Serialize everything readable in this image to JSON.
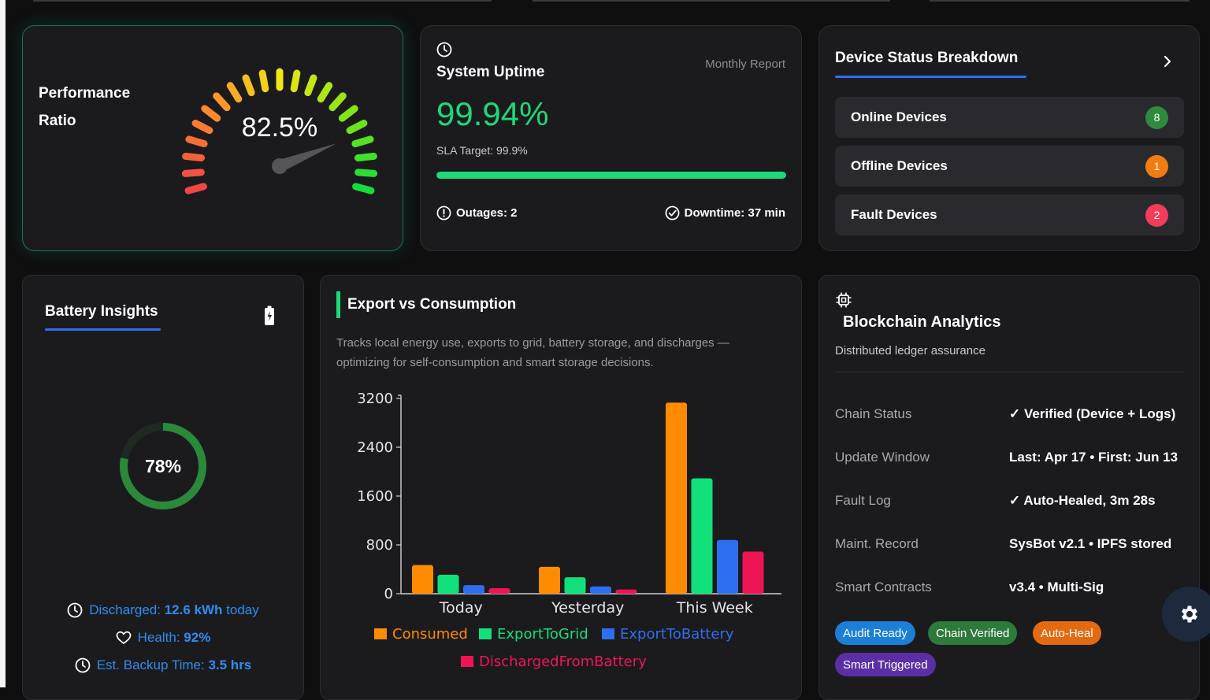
{
  "performance": {
    "title_line1": "Performance",
    "title_line2": "Ratio",
    "value_text": "82.5%",
    "value": 82.5
  },
  "uptime": {
    "title": "System Uptime",
    "report": "Monthly Report",
    "value": "99.94%",
    "sla": "SLA Target: 99.9%",
    "progress": 0.9994,
    "outages": "Outages: 2",
    "downtime": "Downtime: 37 min"
  },
  "devices": {
    "title": "Device Status Breakdown",
    "rows": [
      {
        "label": "Online Devices",
        "count": "8",
        "color": "#2e8b3e"
      },
      {
        "label": "Offline Devices",
        "count": "1",
        "color": "#f07c12"
      },
      {
        "label": "Fault Devices",
        "count": "2",
        "color": "#f23d5a"
      }
    ]
  },
  "battery": {
    "title": "Battery Insights",
    "percent_text": "78%",
    "percent": 78,
    "discharged_label": "Discharged:",
    "discharged_value": "12.6 kWh",
    "discharged_suffix": "today",
    "health_label": "Health:",
    "health_value": "92%",
    "backup_label": "Est. Backup Time:",
    "backup_value": "3.5 hrs"
  },
  "export": {
    "title": "Export vs Consumption",
    "description": "Tracks local energy use, exports to grid, battery storage, and discharges — optimizing for self-consumption and smart storage decisions."
  },
  "chart_data": {
    "type": "bar",
    "categories": [
      "Today",
      "Yesterday",
      "This Week"
    ],
    "series": [
      {
        "name": "Consumed",
        "color": "#ff8c00",
        "values": [
          470,
          440,
          3130
        ]
      },
      {
        "name": "ExportToGrid",
        "color": "#12e07a",
        "values": [
          310,
          270,
          1890
        ]
      },
      {
        "name": "ExportToBattery",
        "color": "#2f6ef0",
        "values": [
          140,
          120,
          880
        ]
      },
      {
        "name": "DischargedFromBattery",
        "color": "#ee1556",
        "values": [
          90,
          70,
          690
        ]
      }
    ],
    "yticks": [
      "0",
      "800",
      "1600",
      "2400",
      "3200"
    ],
    "ylim": [
      0,
      3200
    ],
    "legend": "bottom"
  },
  "blockchain": {
    "title": "Blockchain Analytics",
    "subtitle": "Distributed ledger assurance",
    "rows": [
      {
        "key": "Chain Status",
        "value": "✓ Verified (Device + Logs)"
      },
      {
        "key": "Update Window",
        "value": "Last: Apr 17 • First: Jun 13"
      },
      {
        "key": "Fault Log",
        "value": "✓ Auto-Healed, 3m 28s"
      },
      {
        "key": "Maint. Record",
        "value": "SysBot v2.1 • IPFS stored"
      },
      {
        "key": "Smart Contracts",
        "value": "v3.4 • Multi-Sig"
      }
    ],
    "tags": [
      {
        "label": "Audit Ready",
        "color": "#1c7fd6"
      },
      {
        "label": "Chain Verified",
        "color": "#2d7a3a"
      },
      {
        "label": "Auto-Heal",
        "color": "#e36a10"
      },
      {
        "label": "Smart Triggered",
        "color": "#5b2ea6"
      }
    ]
  },
  "icons": {
    "clock": "clock-icon",
    "alert": "alert-circle-icon",
    "check": "check-circle-icon",
    "chevron": "chevron-right-icon",
    "battery": "battery-charging-icon",
    "heart": "heart-icon",
    "chip": "chip-icon",
    "gear": "gear-icon"
  }
}
